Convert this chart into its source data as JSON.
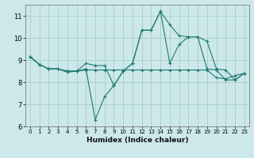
{
  "title": "",
  "xlabel": "Humidex (Indice chaleur)",
  "bg_color": "#cce8ea",
  "grid_color": "#aacccc",
  "line_color": "#1e7a6e",
  "xlim": [
    -0.5,
    23.5
  ],
  "ylim": [
    6,
    11.5
  ],
  "yticks": [
    6,
    7,
    8,
    9,
    10,
    11
  ],
  "xticks": [
    0,
    1,
    2,
    3,
    4,
    5,
    6,
    7,
    8,
    9,
    10,
    11,
    12,
    13,
    14,
    15,
    16,
    17,
    18,
    19,
    20,
    21,
    22,
    23
  ],
  "lines": [
    {
      "x": [
        0,
        1,
        2,
        3,
        4,
        5,
        6,
        7,
        8,
        9,
        10,
        11,
        12,
        13,
        14,
        15,
        16,
        17,
        18,
        19,
        20,
        21,
        22,
        23
      ],
      "y": [
        9.15,
        8.8,
        8.6,
        8.6,
        8.5,
        8.5,
        8.55,
        8.55,
        8.55,
        8.55,
        8.55,
        8.55,
        8.55,
        8.55,
        8.55,
        8.55,
        8.55,
        8.55,
        8.55,
        8.55,
        8.2,
        8.15,
        8.3,
        8.4
      ]
    },
    {
      "x": [
        0,
        1,
        2,
        3,
        4,
        5,
        6,
        7,
        8,
        9,
        10,
        11,
        12,
        13,
        14,
        15,
        16,
        17,
        18,
        19,
        20,
        21,
        22,
        23
      ],
      "y": [
        9.15,
        8.8,
        8.6,
        8.6,
        8.5,
        8.5,
        8.6,
        6.3,
        7.35,
        7.85,
        8.5,
        8.85,
        10.35,
        10.35,
        11.2,
        10.6,
        10.1,
        10.05,
        10.05,
        9.85,
        8.6,
        8.55,
        8.1,
        8.4
      ]
    },
    {
      "x": [
        0,
        1,
        2,
        3,
        4,
        5,
        6,
        7,
        8,
        9,
        10,
        11,
        12,
        13,
        14,
        15,
        16,
        17,
        18,
        19,
        20,
        21,
        22,
        23
      ],
      "y": [
        9.15,
        8.8,
        8.6,
        8.6,
        8.45,
        8.5,
        8.85,
        8.75,
        8.75,
        7.85,
        8.5,
        8.85,
        10.35,
        10.35,
        11.2,
        8.85,
        9.7,
        10.05,
        10.05,
        8.6,
        8.55,
        8.1,
        8.1,
        8.4
      ]
    }
  ]
}
